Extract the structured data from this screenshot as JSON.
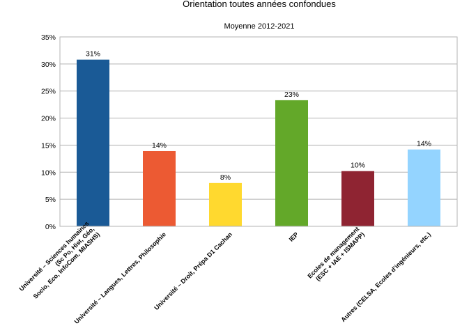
{
  "chart_data": {
    "type": "bar",
    "title": "Orientation toutes années confondues",
    "subtitle": "Moyenne 2012-2021",
    "xlabel": "",
    "ylabel": "",
    "ylim": [
      0,
      35
    ],
    "yticks": [
      0,
      5,
      10,
      15,
      20,
      25,
      30,
      35
    ],
    "ytick_labels": [
      "0%",
      "5%",
      "10%",
      "15%",
      "20%",
      "25%",
      "30%",
      "35%"
    ],
    "grid": true,
    "legend": "none",
    "categories": [
      "Université – Sciences humaines (Sc Po, Hist, Géo, Socio, Eco, InfoCom, MIASHS)",
      "Université – Langues, Lettres, Philosophie",
      "Université – Droit, Prépa D1 Cachan",
      "IEP",
      "Ecoles de management (ESC + IAE + ISMAPP)",
      "Autres (CELSA, Ecoles d'ingénieurs, etc.)"
    ],
    "category_lines": [
      [
        "Université – Sciences humaines",
        "(Sc Po, Hist, Géo,",
        "Socio, Eco, InfoCom, MIASHS)"
      ],
      [
        "Université – Langues, Lettres, Philosophie"
      ],
      [
        "Université – Droit, Prépa D1 Cachan"
      ],
      [
        "IEP"
      ],
      [
        "Ecoles de management",
        "(ESC + IAE + ISMAPP)"
      ],
      [
        "Autres (CELSA, Ecoles d'ingénieurs, etc.)"
      ]
    ],
    "values": [
      30.8,
      13.9,
      8.0,
      23.3,
      10.2,
      14.2
    ],
    "data_labels": [
      "31%",
      "14%",
      "8%",
      "23%",
      "10%",
      "14%"
    ],
    "colors": [
      "#1a5a96",
      "#ec5a33",
      "#ffd92f",
      "#63a829",
      "#8f2432",
      "#94d4ff"
    ]
  }
}
